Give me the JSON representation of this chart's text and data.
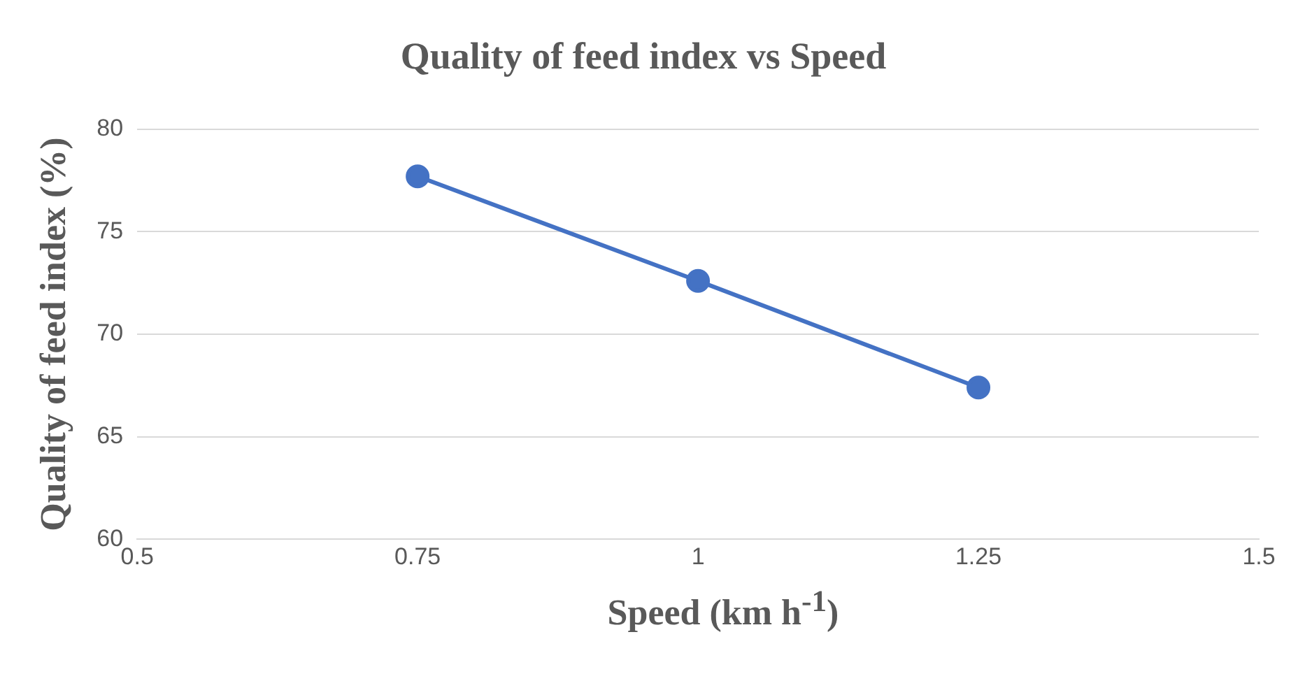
{
  "chart_data": {
    "type": "line",
    "title": "Quality of feed index vs Speed",
    "xlabel": "Speed (km h$^{-1}$)",
    "ylabel": "Quality of feed index (%)",
    "x": [
      0.75,
      1,
      1.25
    ],
    "series": [
      {
        "color": "#4472c4",
        "values": [
          77.7,
          72.6,
          67.4
        ]
      }
    ],
    "xlim": [
      0.5,
      1.5
    ],
    "xticks": [
      0.5,
      0.75,
      1,
      1.25,
      1.5
    ],
    "ylim": [
      60,
      80
    ],
    "yticks": [
      60,
      65,
      70,
      75,
      80
    ],
    "grid": "y",
    "legend": false,
    "marker": "circle",
    "line_style": "solid"
  }
}
